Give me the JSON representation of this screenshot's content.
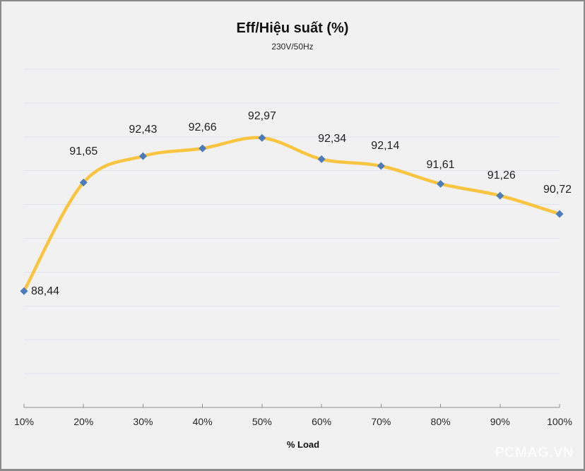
{
  "header": {
    "title": "Eff/Hiệu suất (%)",
    "subtitle": "230V/50Hz"
  },
  "watermark": "PCMAG.VN",
  "chart_data": {
    "type": "line",
    "title": "Eff/Hiệu suất (%)",
    "subtitle": "230V/50Hz",
    "xlabel": "% Load",
    "ylabel": "",
    "categories": [
      "10%",
      "20%",
      "30%",
      "40%",
      "50%",
      "60%",
      "70%",
      "80%",
      "90%",
      "100%"
    ],
    "series": [
      {
        "name": "Eff/Hiệu suất",
        "values": [
          88.44,
          91.65,
          92.43,
          92.66,
          92.97,
          92.34,
          92.14,
          91.61,
          91.26,
          90.72
        ]
      }
    ],
    "data_labels": [
      "88,44",
      "91,65",
      "92,43",
      "92,66",
      "92,97",
      "92,34",
      "92,14",
      "91,61",
      "91,26",
      "90,72"
    ],
    "ylim": [
      85,
      95
    ],
    "gridline_step": 1,
    "grid": true,
    "smooth": true,
    "legend": "none",
    "yaxis_labels_visible": false,
    "colors": {
      "line": "#F9C440",
      "marker": "#4C7CBC",
      "gridline": "#DDE4F0",
      "axis": "#8E8E8E",
      "background": "#F1F1F1",
      "label_text": "#1F1F1F",
      "watermark": "#FBFBFB"
    }
  }
}
